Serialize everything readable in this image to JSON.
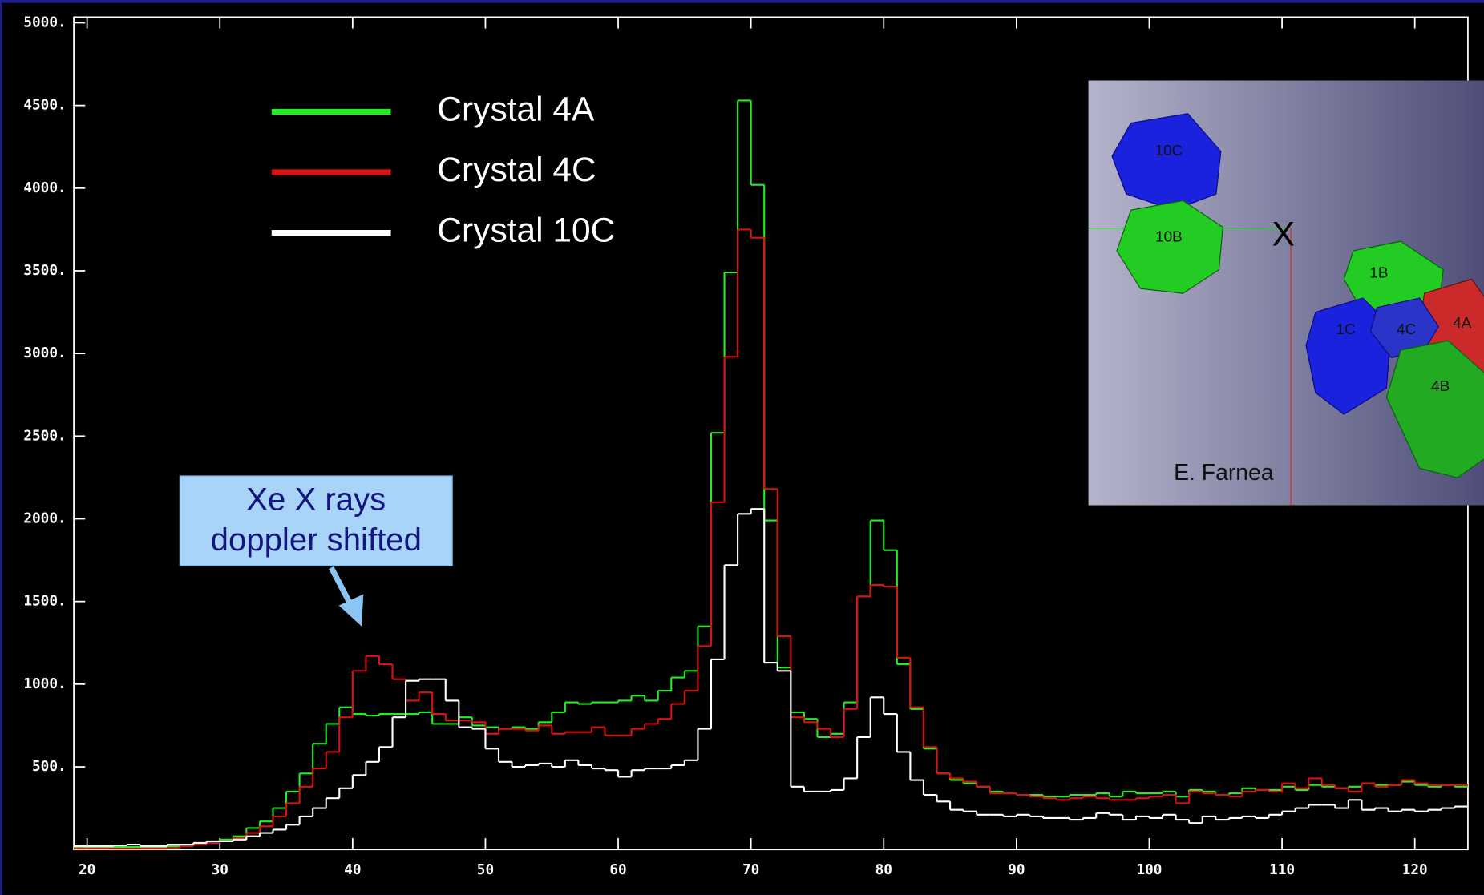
{
  "chart_data": {
    "type": "histogram",
    "bins": [
      19,
      20,
      21,
      22,
      23,
      24,
      25,
      26,
      27,
      28,
      29,
      30,
      31,
      32,
      33,
      34,
      35,
      36,
      37,
      38,
      39,
      40,
      41,
      42,
      43,
      44,
      45,
      46,
      47,
      48,
      49,
      50,
      51,
      52,
      53,
      54,
      55,
      56,
      57,
      58,
      59,
      60,
      61,
      62,
      63,
      64,
      65,
      66,
      67,
      68,
      69,
      70,
      71,
      72,
      73,
      74,
      75,
      76,
      77,
      78,
      79,
      80,
      81,
      82,
      83,
      84,
      85,
      86,
      87,
      88,
      89,
      90,
      91,
      92,
      93,
      94,
      95,
      96,
      97,
      98,
      99,
      100,
      101,
      102,
      103,
      104,
      105,
      106,
      107,
      108,
      109,
      110,
      111,
      112,
      113,
      114,
      115,
      116,
      117,
      118,
      119,
      120,
      121,
      122,
      123,
      124
    ],
    "series": [
      {
        "name": "Crystal 4A",
        "color": "#22ee22",
        "values": [
          10,
          15,
          15,
          15,
          15,
          15,
          15,
          20,
          25,
          30,
          40,
          60,
          80,
          130,
          170,
          250,
          350,
          460,
          640,
          760,
          860,
          820,
          810,
          820,
          820,
          820,
          830,
          760,
          760,
          800,
          750,
          740,
          730,
          740,
          730,
          770,
          830,
          890,
          880,
          890,
          890,
          900,
          930,
          900,
          960,
          1040,
          1080,
          1350,
          2520,
          3490,
          4530,
          4020,
          1990,
          1100,
          830,
          790,
          680,
          700,
          890,
          1530,
          1990,
          1810,
          1120,
          850,
          610,
          460,
          420,
          400,
          380,
          350,
          340,
          330,
          330,
          320,
          320,
          330,
          330,
          340,
          320,
          350,
          340,
          340,
          350,
          320,
          360,
          350,
          330,
          340,
          370,
          360,
          360,
          380,
          360,
          390,
          380,
          370,
          380,
          400,
          390,
          390,
          410,
          390,
          380,
          390,
          380
        ]
      },
      {
        "name": "Crystal 4C",
        "color": "#dd1111",
        "values": [
          5,
          5,
          5,
          5,
          5,
          5,
          5,
          10,
          20,
          30,
          40,
          50,
          70,
          100,
          140,
          200,
          280,
          380,
          490,
          590,
          800,
          1080,
          1170,
          1120,
          1030,
          900,
          950,
          820,
          780,
          780,
          770,
          700,
          730,
          730,
          720,
          750,
          700,
          710,
          710,
          740,
          690,
          690,
          730,
          760,
          790,
          880,
          960,
          1230,
          2100,
          2980,
          3750,
          3700,
          2180,
          1290,
          800,
          770,
          730,
          680,
          850,
          1530,
          1600,
          1590,
          1160,
          860,
          620,
          460,
          430,
          410,
          380,
          340,
          340,
          330,
          320,
          310,
          300,
          310,
          320,
          310,
          300,
          300,
          310,
          320,
          330,
          280,
          350,
          340,
          330,
          320,
          350,
          360,
          350,
          400,
          370,
          430,
          390,
          370,
          350,
          400,
          380,
          390,
          420,
          400,
          390,
          390,
          390
        ]
      },
      {
        "name": "Crystal 10C",
        "color": "#ffffff",
        "values": [
          20,
          20,
          20,
          25,
          30,
          20,
          20,
          30,
          30,
          40,
          50,
          50,
          60,
          80,
          100,
          120,
          150,
          200,
          250,
          310,
          370,
          450,
          530,
          620,
          800,
          1020,
          1030,
          1030,
          900,
          740,
          730,
          610,
          530,
          500,
          510,
          520,
          500,
          540,
          510,
          490,
          480,
          440,
          480,
          490,
          490,
          510,
          540,
          730,
          1150,
          1720,
          2030,
          2060,
          1130,
          1080,
          380,
          350,
          350,
          360,
          430,
          680,
          920,
          820,
          590,
          420,
          330,
          290,
          240,
          230,
          210,
          210,
          200,
          210,
          200,
          190,
          190,
          180,
          190,
          220,
          210,
          180,
          200,
          190,
          210,
          180,
          160,
          200,
          180,
          190,
          200,
          190,
          210,
          230,
          250,
          270,
          270,
          250,
          300,
          240,
          250,
          230,
          240,
          230,
          240,
          250,
          260
        ]
      }
    ],
    "xlim": [
      19,
      124
    ],
    "ylim": [
      0,
      5000
    ],
    "xticks": [
      20,
      30,
      40,
      50,
      60,
      70,
      80,
      90,
      100,
      110,
      120
    ],
    "yticks": [
      {
        "value": 500,
        "label": "500."
      },
      {
        "value": 1000,
        "label": "1000."
      },
      {
        "value": 1500,
        "label": "1500."
      },
      {
        "value": 2000,
        "label": "2000."
      },
      {
        "value": 2500,
        "label": "2500."
      },
      {
        "value": 3000,
        "label": "3000."
      },
      {
        "value": 3500,
        "label": "3500."
      },
      {
        "value": 4000,
        "label": "4000."
      },
      {
        "value": 4500,
        "label": "4500."
      },
      {
        "value": 5000,
        "label": "5000."
      }
    ],
    "annotation": [
      "Xe X rays",
      "doppler shifted"
    ],
    "inset": {
      "labels": [
        "10C",
        "10B",
        "X",
        "1B",
        "1C",
        "4C",
        "4A",
        "4B"
      ],
      "credit": "E. Farnea"
    }
  }
}
